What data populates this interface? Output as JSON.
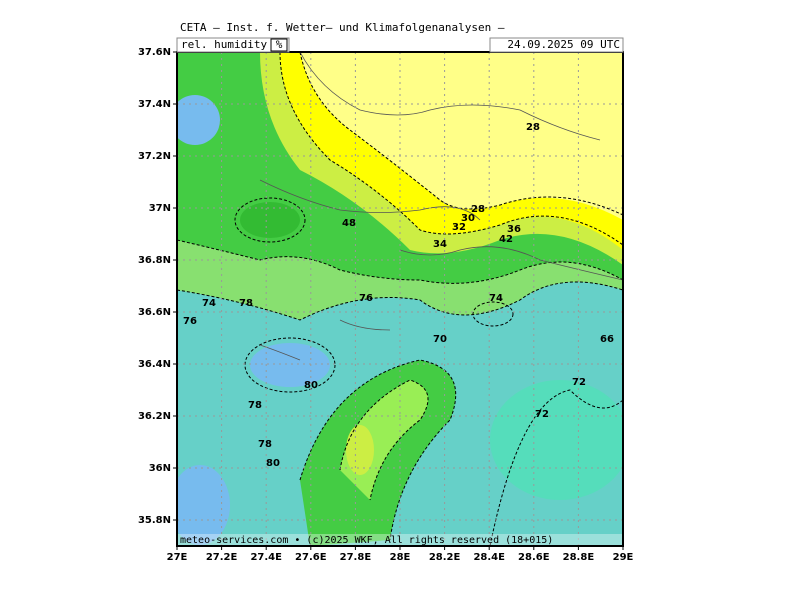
{
  "header": {
    "title": "CETA — Inst. f. Wetter— und Klimafolgenanalysen —",
    "variable": "rel. humidity",
    "unit": "%",
    "datetime": "24.09.2025 09 UTC"
  },
  "footer": "meteo-services.com • (c)2025 WKF, All rights reserved (18+015)",
  "map": {
    "xlim": [
      27,
      29
    ],
    "ylim": [
      35.7,
      37.6
    ],
    "xticks": [
      {
        "value": 27,
        "label": "27E"
      },
      {
        "value": 27.2,
        "label": "27.2E"
      },
      {
        "value": 27.4,
        "label": "27.4E"
      },
      {
        "value": 27.6,
        "label": "27.6E"
      },
      {
        "value": 27.8,
        "label": "27.8E"
      },
      {
        "value": 28,
        "label": "28E"
      },
      {
        "value": 28.2,
        "label": "28.2E"
      },
      {
        "value": 28.4,
        "label": "28.4E"
      },
      {
        "value": 28.6,
        "label": "28.6E"
      },
      {
        "value": 28.8,
        "label": "28.8E"
      },
      {
        "value": 29,
        "label": "29E"
      }
    ],
    "yticks": [
      {
        "value": 35.8,
        "label": "35.8N"
      },
      {
        "value": 36,
        "label": "36N"
      },
      {
        "value": 36.2,
        "label": "36.2N"
      },
      {
        "value": 36.4,
        "label": "36.4N"
      },
      {
        "value": 36.6,
        "label": "36.6N"
      },
      {
        "value": 36.8,
        "label": "36.8N"
      },
      {
        "value": 37,
        "label": "37N"
      },
      {
        "value": 37.2,
        "label": "37.2N"
      },
      {
        "value": 37.4,
        "label": "37.4N"
      },
      {
        "value": 37.6,
        "label": "37.6N"
      }
    ],
    "contour_labels": [
      28,
      28,
      30,
      32,
      34,
      36,
      42,
      48,
      76,
      78,
      80,
      78,
      78,
      80,
      72,
      72,
      66,
      74,
      70,
      74,
      76
    ]
  }
}
